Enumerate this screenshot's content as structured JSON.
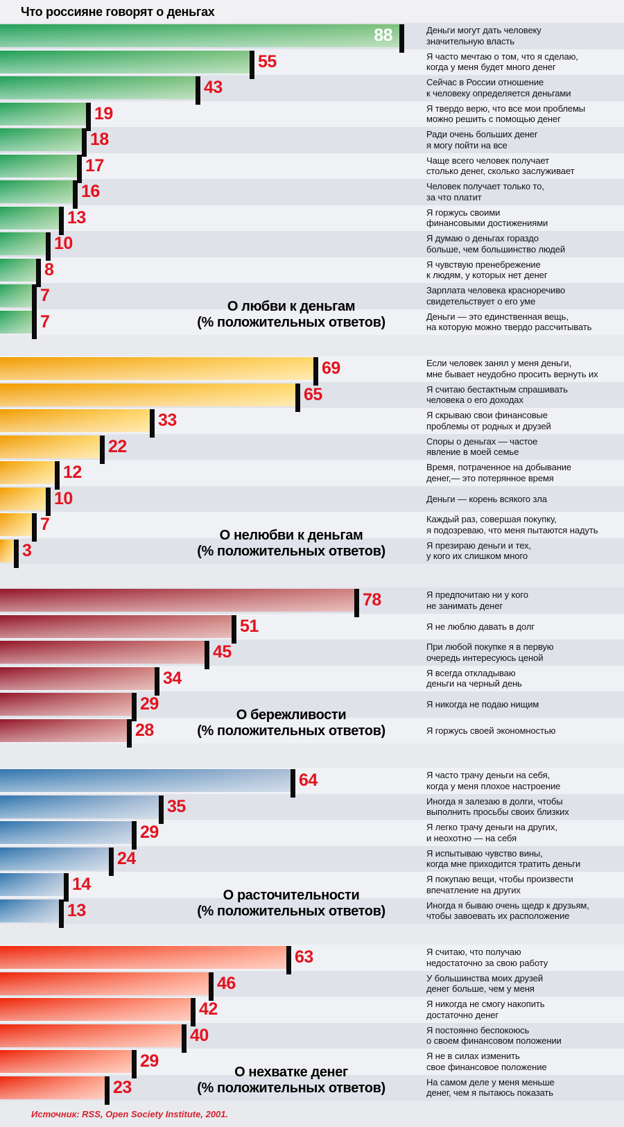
{
  "title": "Что россияне говорят о деньгах",
  "source": "Источник: RSS, Open Society Institute, 2001.",
  "accent_value_color": "#e3131e",
  "row_stripe_dark": "#e0e2e9",
  "row_stripe_light": "#f0f1f5",
  "chart_data": {
    "type": "bar",
    "orientation": "horizontal",
    "title": "Что россияне говорят о деньгах",
    "unit": "% положительных ответов",
    "xlim": [
      0,
      100
    ],
    "sections": [
      {
        "id": "love-of-money",
        "title": "О любви к деньгам",
        "subtitle": "(% положительных ответов)",
        "color_start": "#21a058",
        "color_end": "#7ec27f",
        "first_row_shade": "dark",
        "items": [
          {
            "value": 88,
            "value_inside": true,
            "label": "Деньги могут дать человеку\nзначительную власть"
          },
          {
            "value": 55,
            "label": "Я часто мечтаю о том, что я сделаю,\nкогда у меня будет много денег"
          },
          {
            "value": 43,
            "label": "Сейчас в России отношение\nк человеку определяется деньгами"
          },
          {
            "value": 19,
            "label": "Я твердо верю, что все мои проблемы\nможно решить с помощью денег"
          },
          {
            "value": 18,
            "label": "Ради очень больших денег\nя могу пойти на все"
          },
          {
            "value": 17,
            "label": "Чаще всего человек получает\nстолько денег, сколько заслуживает"
          },
          {
            "value": 16,
            "label": "Человек получает только то,\nза что платит"
          },
          {
            "value": 13,
            "label": "Я горжусь своими\nфинансовыми достижениями"
          },
          {
            "value": 10,
            "label": "Я думаю о деньгах гораздо\nбольше, чем большинство людей"
          },
          {
            "value": 8,
            "label": "Я чувствую пренебрежение\nк людям, у которых нет денег"
          },
          {
            "value": 7,
            "label": "Зарплата человека красноречиво\nсвидетельствует о его уме"
          },
          {
            "value": 7,
            "label": "Деньги — это единственная вещь,\nна которую можно твердо рассчитывать"
          }
        ]
      },
      {
        "id": "dislike-of-money",
        "title": "О нелюбви к деньгам",
        "subtitle": "(% положительных ответов)",
        "color_start": "#f29c00",
        "color_end": "#ffd666",
        "first_row_shade": "light",
        "items": [
          {
            "value": 69,
            "label": "Если человек занял у меня деньги,\nмне бывает неудобно просить вернуть их"
          },
          {
            "value": 65,
            "label": "Я считаю бестактным спрашивать\nчеловека о его доходах"
          },
          {
            "value": 33,
            "label": "Я скрываю свои финансовые\nпроблемы от родных и друзей"
          },
          {
            "value": 22,
            "label": "Споры о деньгах — частое\nявление в моей семье"
          },
          {
            "value": 12,
            "label": "Время, потраченное на добывание\nденег,— это потерянное время"
          },
          {
            "value": 10,
            "label": "Деньги — корень всякого зла"
          },
          {
            "value": 7,
            "label": "Каждый раз, совершая покупку,\nя подозреваю, что меня пытаются надуть"
          },
          {
            "value": 3,
            "label": "Я презираю деньги и тех,\nу кого их слишком много"
          }
        ]
      },
      {
        "id": "thrift",
        "title": "О бережливости",
        "subtitle": "(% положительных ответов)",
        "color_start": "#931628",
        "color_end": "#cf7f7c",
        "first_row_shade": "dark",
        "items": [
          {
            "value": 78,
            "label": "Я предпочитаю ни у кого\nне занимать денег"
          },
          {
            "value": 51,
            "label": "Я не люблю давать в долг"
          },
          {
            "value": 45,
            "label": "При любой покупке я в первую\nочередь интересуюсь ценой"
          },
          {
            "value": 34,
            "label": "Я всегда откладываю\nденьги на черный день"
          },
          {
            "value": 29,
            "label": "Я никогда не подаю нищим"
          },
          {
            "value": 28,
            "label": "Я горжусь своей экономностью"
          }
        ]
      },
      {
        "id": "wastefulness",
        "title": "О расточительности",
        "subtitle": "(% положительных ответов)",
        "color_start": "#2f74ad",
        "color_end": "#a7bbd4",
        "first_row_shade": "light",
        "items": [
          {
            "value": 64,
            "label": "Я часто трачу деньги на себя,\nкогда у меня плохое настроение"
          },
          {
            "value": 35,
            "label": "Иногда я залезаю в долги, чтобы\nвыполнить просьбы своих близких"
          },
          {
            "value": 29,
            "label": "Я легко трачу деньги на других,\nи неохотно — на себя"
          },
          {
            "value": 24,
            "label": "Я испытываю чувство вины,\nкогда мне приходится тратить деньги"
          },
          {
            "value": 14,
            "label": "Я покупаю вещи, чтобы произвести\nвпечатление на других"
          },
          {
            "value": 13,
            "label": "Иногда я бываю очень щедр к друзьям,\nчтобы завоевать их расположение"
          }
        ]
      },
      {
        "id": "lack-of-money",
        "title": "О нехватке денег",
        "subtitle": "(% положительных ответов)",
        "color_start": "#ee2508",
        "color_end": "#ff9f85",
        "first_row_shade": "light",
        "items": [
          {
            "value": 63,
            "label": "Я считаю, что получаю\nнедостаточно за свою работу"
          },
          {
            "value": 46,
            "label": "У большинства моих друзей\nденег больше, чем у меня"
          },
          {
            "value": 42,
            "label": "Я никогда не смогу накопить\nдостаточно денег"
          },
          {
            "value": 40,
            "label": "Я постоянно беспокоюсь\nо своем финансовом положении"
          },
          {
            "value": 29,
            "label": "Я не в силах изменить\nсвое финансовое положение"
          },
          {
            "value": 23,
            "label": "На самом деле у меня меньше\nденег, чем я пытаюсь показать"
          }
        ]
      }
    ]
  }
}
